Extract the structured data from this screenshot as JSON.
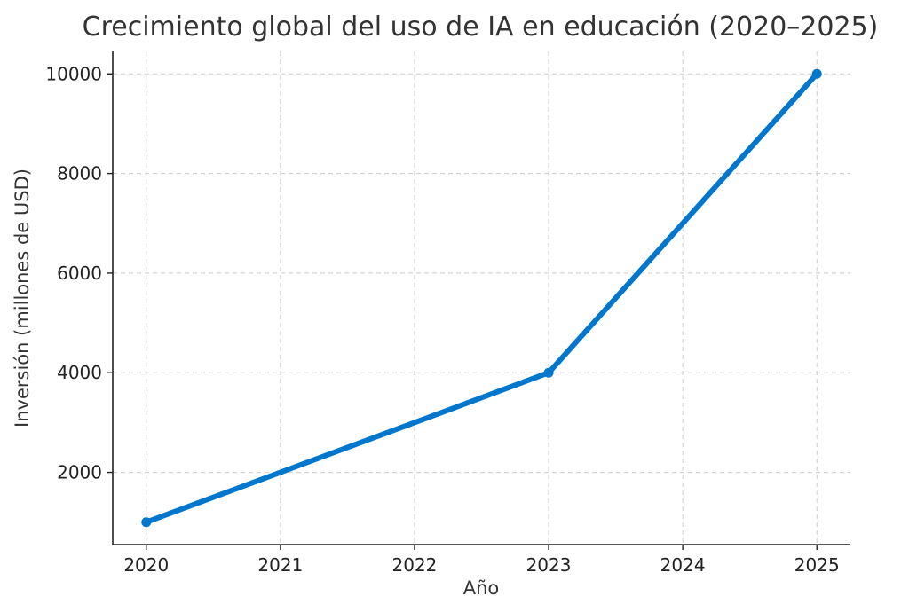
{
  "chart_data": {
    "type": "line",
    "title": "Crecimiento global del uso de IA en educación (2020–2025)",
    "xlabel": "Año",
    "ylabel": "Inversión (millones de USD)",
    "x": [
      2020,
      2021,
      2022,
      2023,
      2024,
      2025
    ],
    "xticks": [
      "2020",
      "2021",
      "2022",
      "2023",
      "2024",
      "2025"
    ],
    "yticks": [
      "2000",
      "4000",
      "6000",
      "8000",
      "10000"
    ],
    "xlim": [
      2019.75,
      2025.25
    ],
    "ylim": [
      550,
      10450
    ],
    "series": [
      {
        "values": [
          1000,
          2000,
          3000,
          4000,
          7000,
          10000
        ],
        "markers": [
          true,
          false,
          false,
          true,
          false,
          true
        ],
        "color": "#0077cc"
      }
    ],
    "grid": true,
    "legend": "none"
  }
}
